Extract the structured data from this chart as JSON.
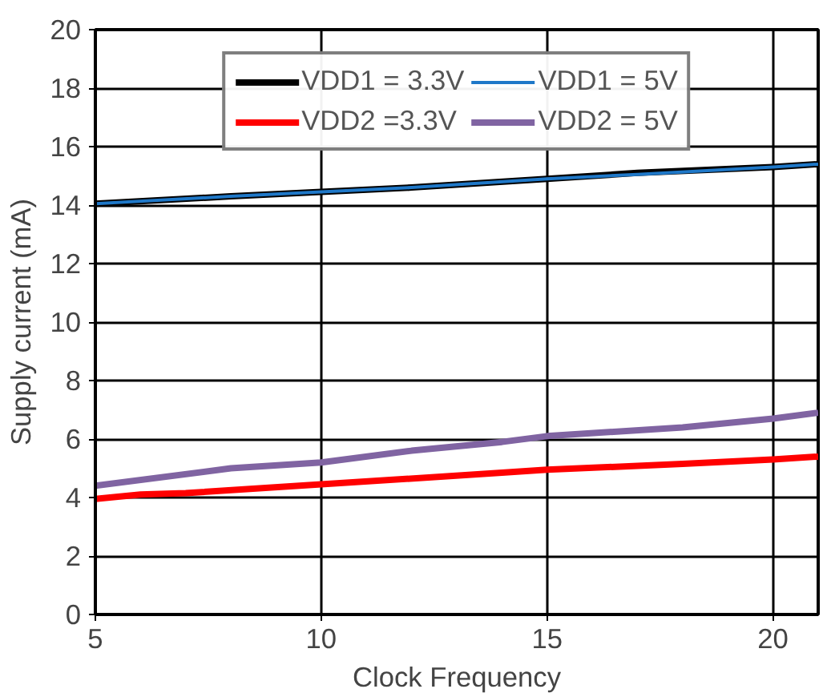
{
  "chart_data": {
    "type": "line",
    "xlabel": "Clock Frequency",
    "ylabel": "Supply current (mA)",
    "xlim": [
      5,
      21
    ],
    "ylim": [
      0,
      20
    ],
    "xticks": [
      5,
      10,
      15,
      20
    ],
    "yticks": [
      0,
      2,
      4,
      6,
      8,
      10,
      12,
      14,
      16,
      18,
      20
    ],
    "grid": true,
    "legend": "top",
    "line_style": "solid",
    "series": [
      {
        "name": "VDD1 = 3.3V",
        "color": "#000000",
        "x": [
          5,
          8,
          10,
          12,
          15,
          17,
          20,
          21
        ],
        "values": [
          14.05,
          14.3,
          14.45,
          14.6,
          14.9,
          15.1,
          15.3,
          15.4
        ]
      },
      {
        "name": "VDD2 =3.3V",
        "color": "#ff0000",
        "x": [
          5,
          6,
          7,
          10,
          14,
          15,
          18,
          20,
          21
        ],
        "values": [
          3.95,
          4.1,
          4.15,
          4.45,
          4.85,
          4.95,
          5.15,
          5.3,
          5.4
        ]
      },
      {
        "name": "VDD1 = 5V",
        "color": "#1f78c8",
        "x": [
          5,
          8,
          10,
          12,
          15,
          17,
          20,
          21
        ],
        "values": [
          14.05,
          14.3,
          14.45,
          14.6,
          14.9,
          15.05,
          15.3,
          15.4
        ]
      },
      {
        "name": "VDD2 = 5V",
        "color": "#8064a2",
        "x": [
          5,
          8,
          10,
          12,
          14,
          15,
          18,
          20,
          21
        ],
        "values": [
          4.4,
          5.0,
          5.2,
          5.6,
          5.9,
          6.1,
          6.4,
          6.7,
          6.9
        ]
      }
    ]
  }
}
